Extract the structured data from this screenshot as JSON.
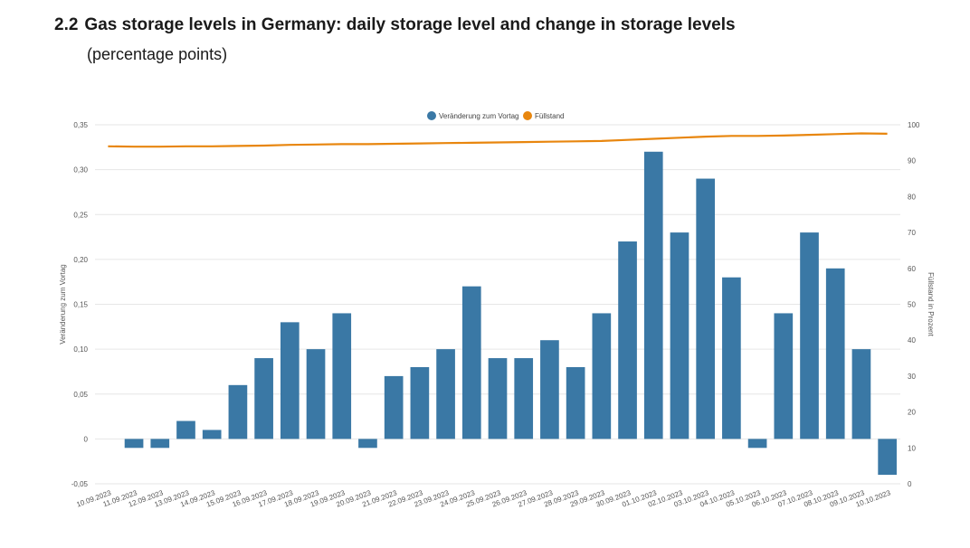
{
  "header": {
    "number": "2.2",
    "title": "Gas storage levels in Germany: daily storage level and change in storage levels",
    "subtitle": "(percentage points)"
  },
  "chart_data": {
    "type": "bar",
    "categories": [
      "10.09.2023",
      "11.09.2023",
      "12.09.2023",
      "13.09.2023",
      "14.09.2023",
      "15.09.2023",
      "16.09.2023",
      "17.09.2023",
      "18.09.2023",
      "19.09.2023",
      "20.09.2023",
      "21.09.2023",
      "22.09.2023",
      "23.09.2023",
      "24.09.2023",
      "25.09.2023",
      "26.09.2023",
      "27.09.2023",
      "28.09.2023",
      "29.09.2023",
      "30.09.2023",
      "01.10.2023",
      "02.10.2023",
      "03.10.2023",
      "04.10.2023",
      "05.10.2023",
      "06.10.2023",
      "07.10.2023",
      "08.10.2023",
      "09.10.2023",
      "10.10.2023"
    ],
    "series": [
      {
        "name": "Veränderung zum Vortag",
        "type": "bar",
        "axis": "left",
        "color": "#3a78a5",
        "values": [
          null,
          -0.01,
          -0.01,
          0.02,
          0.01,
          0.06,
          0.09,
          0.13,
          0.1,
          0.14,
          -0.01,
          0.07,
          0.08,
          0.1,
          0.17,
          0.09,
          0.09,
          0.11,
          0.08,
          0.14,
          0.22,
          0.32,
          0.23,
          0.29,
          0.18,
          -0.01,
          0.14,
          0.23,
          0.19,
          0.1,
          -0.04
        ]
      },
      {
        "name": "Füllstand",
        "type": "line",
        "axis": "right",
        "color": "#e8860e",
        "values": [
          94.0,
          93.9,
          93.9,
          94.0,
          94.0,
          94.1,
          94.2,
          94.4,
          94.5,
          94.6,
          94.6,
          94.7,
          94.8,
          94.9,
          95.0,
          95.1,
          95.2,
          95.3,
          95.4,
          95.5,
          95.8,
          96.1,
          96.4,
          96.7,
          96.9,
          96.9,
          97.0,
          97.2,
          97.4,
          97.6,
          97.5
        ]
      }
    ],
    "left_axis": {
      "label": "Veränderung zum Vortag",
      "ylim": [
        -0.05,
        0.35
      ],
      "ticks": [
        "-0,05",
        "0",
        "0,05",
        "0,10",
        "0,15",
        "0,20",
        "0,25",
        "0,30",
        "0,35"
      ]
    },
    "right_axis": {
      "label": "Füllstand in Prozent",
      "ylim": [
        0,
        100
      ],
      "ticks": [
        "0",
        "10",
        "20",
        "30",
        "40",
        "50",
        "60",
        "70",
        "80",
        "90",
        "100"
      ]
    },
    "grid": true,
    "legend": "top-center"
  }
}
